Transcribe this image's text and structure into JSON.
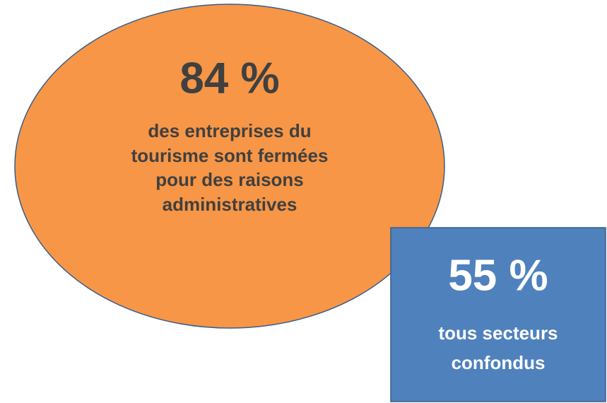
{
  "ellipse": {
    "headline": "84 %",
    "lines": [
      "des entreprises du",
      "tourisme sont fermées",
      "pour des raisons",
      "administratives"
    ]
  },
  "box": {
    "headline": "55 %",
    "lines": [
      "tous secteurs",
      "confondus"
    ]
  }
}
